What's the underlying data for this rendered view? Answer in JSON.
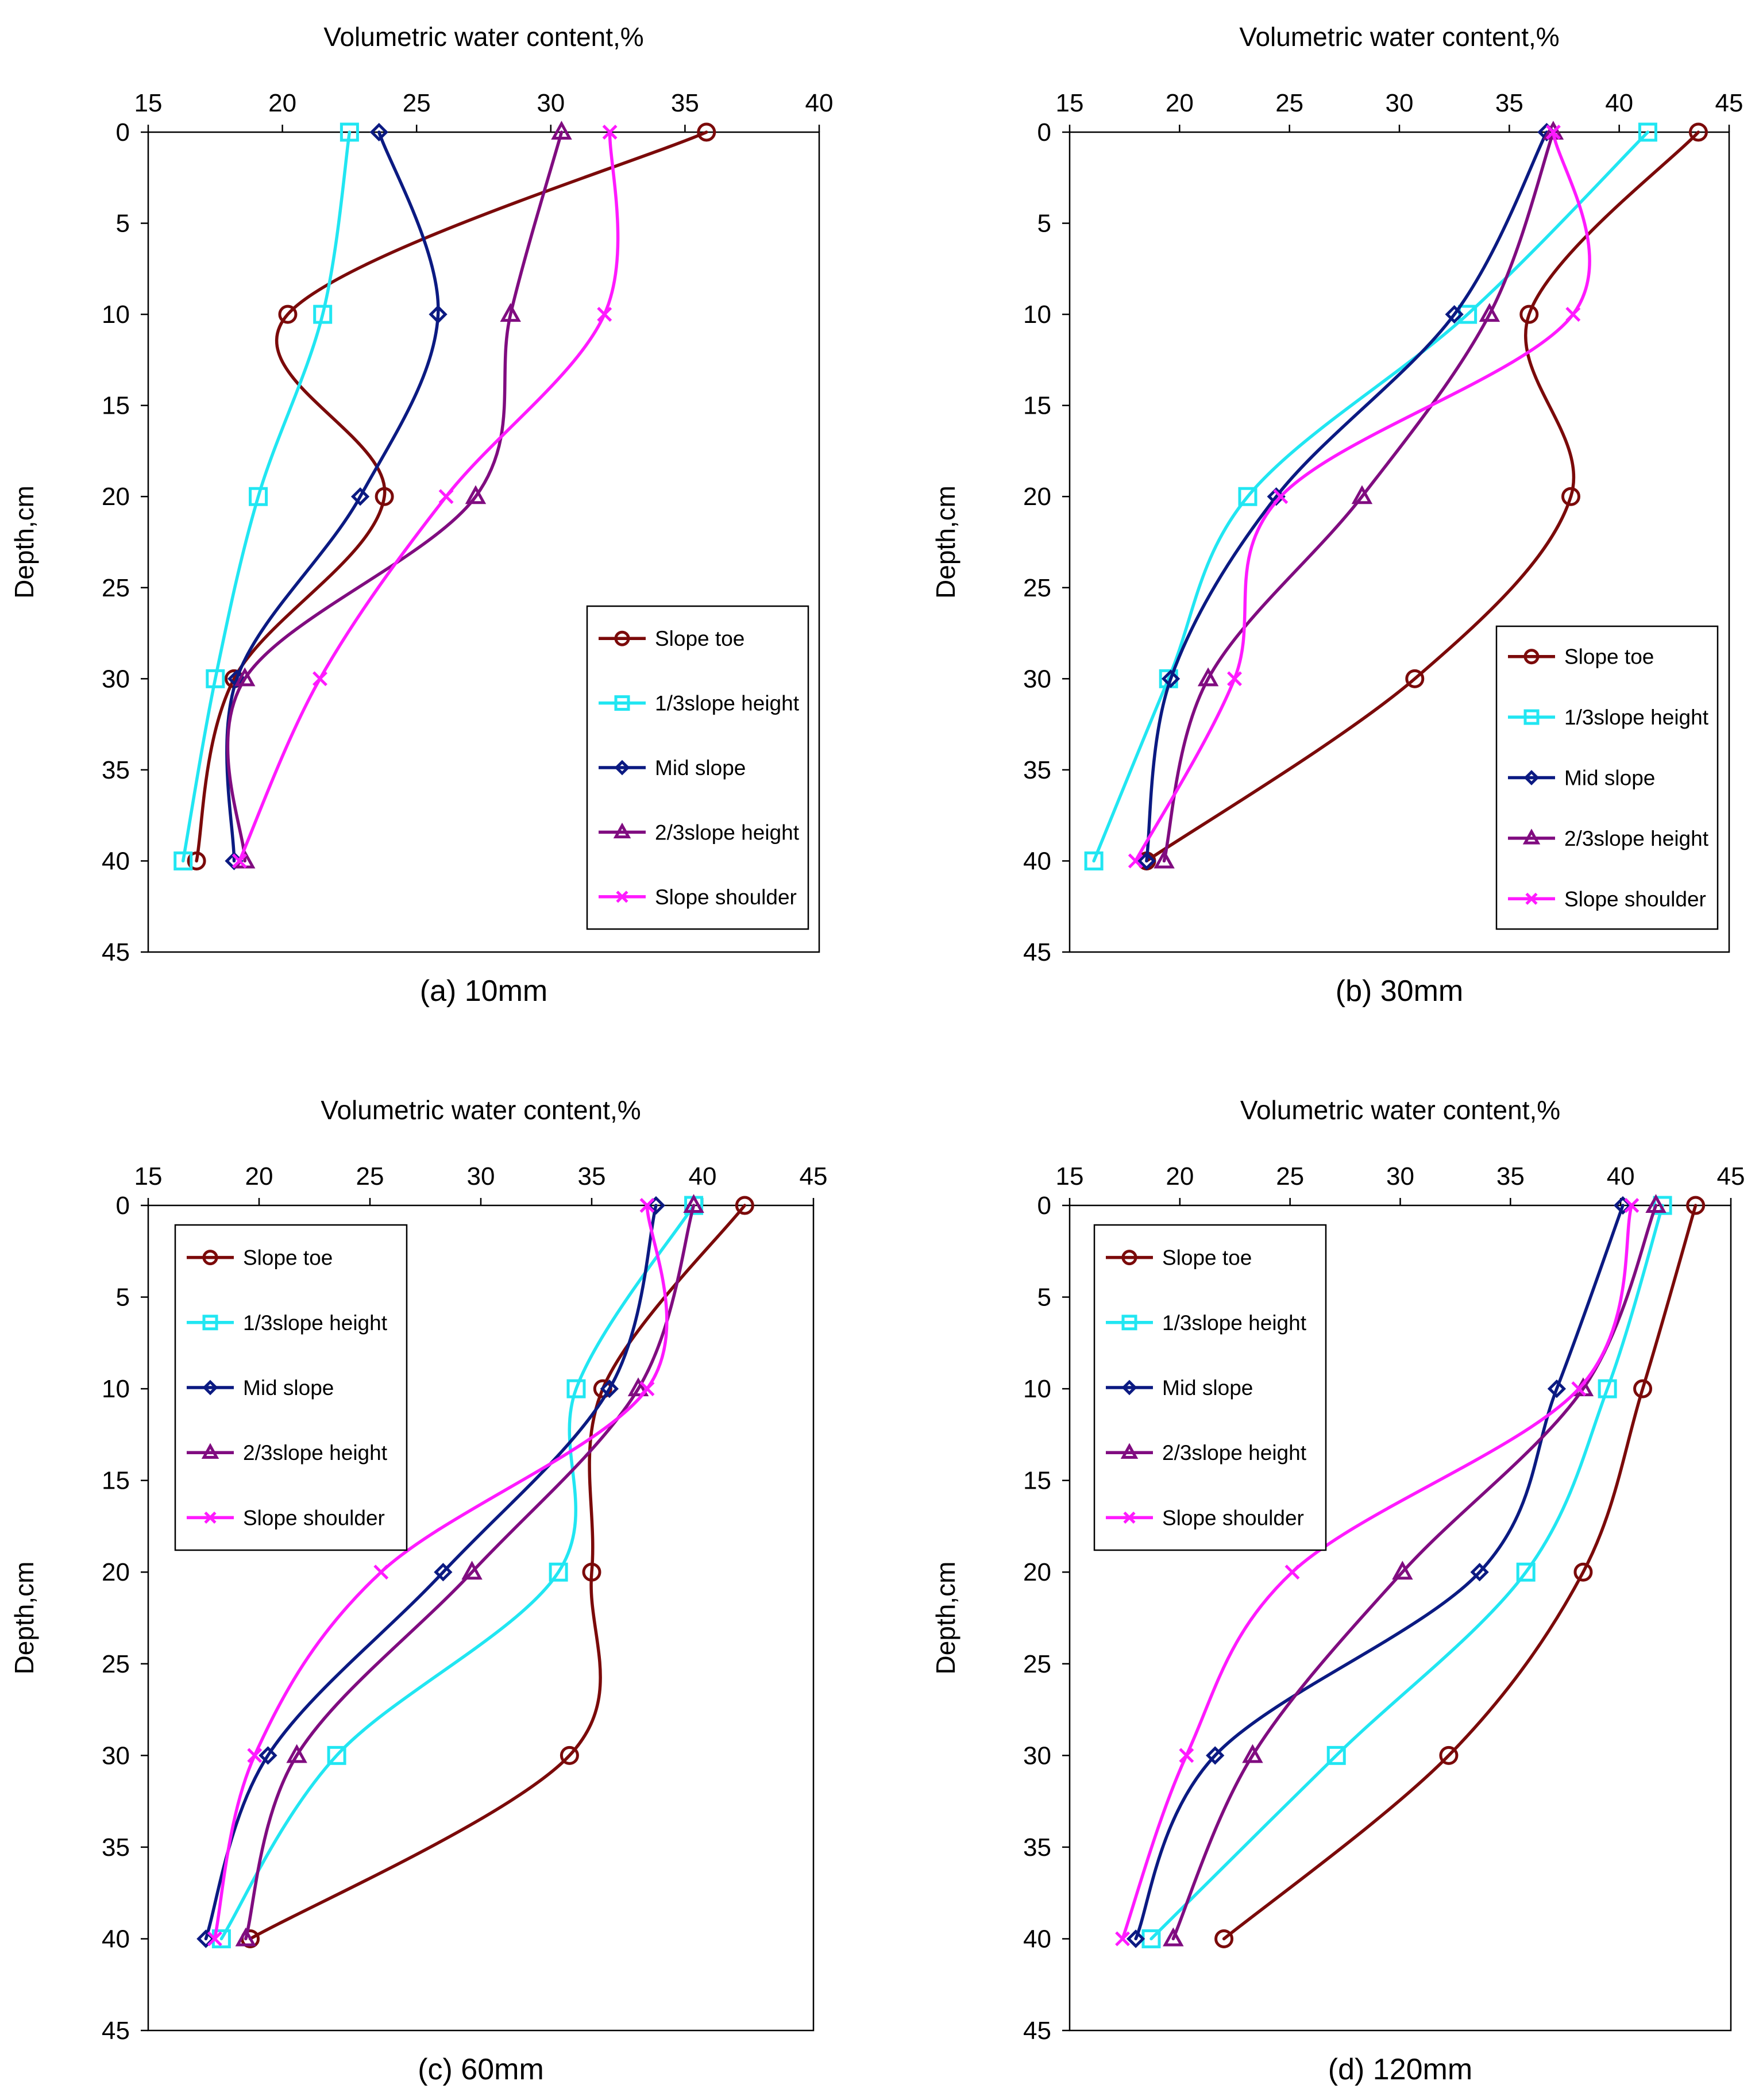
{
  "figure": {
    "colors": {
      "Slope toe": "#7b0a0a",
      "1/3slope height": "#21e6f2",
      "Mid slope": "#0b1a82",
      "2/3slope height": "#800c80",
      "Slope shoulder": "#ff1aff"
    },
    "markers": {
      "Slope toe": "circle",
      "1/3slope height": "square",
      "Mid slope": "diamond",
      "2/3slope height": "triangle",
      "Slope shoulder": "cross"
    }
  },
  "chart_data": [
    {
      "type": "line",
      "caption": "(a) 10mm",
      "xlabel": "Volumetric water content,%",
      "ylabel": "Depth,cm",
      "xlim": [
        15,
        40
      ],
      "xticks": [
        15,
        20,
        25,
        30,
        35,
        40
      ],
      "ylim": [
        0,
        45
      ],
      "yticks": [
        0,
        5,
        10,
        15,
        20,
        25,
        30,
        35,
        40,
        45
      ],
      "y_inverted": true,
      "legend_position": "bottom-right",
      "depths": [
        0,
        10,
        20,
        30,
        40
      ],
      "series": [
        {
          "name": "Slope toe",
          "values": [
            35.8,
            20.2,
            23.8,
            18.2,
            16.8
          ]
        },
        {
          "name": "1/3slope height",
          "values": [
            22.5,
            21.5,
            19.1,
            17.5,
            16.3
          ]
        },
        {
          "name": "Mid slope",
          "values": [
            23.6,
            25.8,
            22.9,
            18.3,
            18.2
          ]
        },
        {
          "name": "2/3slope height",
          "values": [
            30.4,
            28.5,
            27.2,
            18.6,
            18.6
          ]
        },
        {
          "name": "Slope shoulder",
          "values": [
            32.2,
            32.0,
            26.1,
            21.4,
            18.4
          ]
        }
      ],
      "legend": [
        "Slope toe",
        "1/3slope height",
        "Mid slope",
        "2/3slope height",
        "Slope shoulder"
      ]
    },
    {
      "type": "line",
      "caption": "(b) 30mm",
      "xlabel": "Volumetric water content,%",
      "ylabel": "Depth,cm",
      "xlim": [
        15,
        45
      ],
      "xticks": [
        15,
        20,
        25,
        30,
        35,
        40,
        45
      ],
      "ylim": [
        0,
        45
      ],
      "yticks": [
        0,
        5,
        10,
        15,
        20,
        25,
        30,
        35,
        40,
        45
      ],
      "y_inverted": true,
      "legend_position": "bottom-right",
      "depths": [
        0,
        10,
        20,
        30,
        40
      ],
      "series": [
        {
          "name": "Slope toe",
          "values": [
            43.6,
            35.9,
            37.8,
            30.7,
            18.5
          ]
        },
        {
          "name": "1/3slope height",
          "values": [
            41.3,
            33.1,
            23.1,
            19.5,
            16.1
          ]
        },
        {
          "name": "Mid slope",
          "values": [
            36.7,
            32.5,
            24.4,
            19.6,
            18.5
          ]
        },
        {
          "name": "2/3slope height",
          "values": [
            37.0,
            34.1,
            28.3,
            21.3,
            19.3
          ]
        },
        {
          "name": "Slope shoulder",
          "values": [
            37.0,
            37.9,
            24.6,
            22.5,
            18.0
          ]
        }
      ],
      "legend": [
        "Slope toe",
        "1/3slope height",
        "Mid slope",
        "2/3slope height",
        "Slope shoulder"
      ]
    },
    {
      "type": "line",
      "caption": "(c) 60mm",
      "xlabel": "Volumetric water content,%",
      "ylabel": "Depth,cm",
      "xlim": [
        15,
        45
      ],
      "xticks": [
        15,
        20,
        25,
        30,
        35,
        40,
        45
      ],
      "ylim": [
        0,
        45
      ],
      "yticks": [
        0,
        5,
        10,
        15,
        20,
        25,
        30,
        35,
        40,
        45
      ],
      "y_inverted": true,
      "legend_position": "top-left",
      "depths": [
        0,
        10,
        20,
        30,
        40
      ],
      "series": [
        {
          "name": "Slope toe",
          "values": [
            41.9,
            35.5,
            35.0,
            34.0,
            19.6
          ]
        },
        {
          "name": "1/3slope height",
          "values": [
            39.6,
            34.3,
            33.5,
            23.5,
            18.3
          ]
        },
        {
          "name": "Mid slope",
          "values": [
            37.9,
            35.8,
            28.3,
            20.4,
            17.6
          ]
        },
        {
          "name": "2/3slope height",
          "values": [
            39.6,
            37.1,
            29.6,
            21.7,
            19.4
          ]
        },
        {
          "name": "Slope shoulder",
          "values": [
            37.5,
            37.5,
            25.5,
            19.8,
            18.0
          ]
        }
      ],
      "legend": [
        "Slope toe",
        "1/3slope height",
        "Mid slope",
        "2/3slope height",
        "Slope shoulder"
      ]
    },
    {
      "type": "line",
      "caption": "(d) 120mm",
      "xlabel": "Volumetric water content,%",
      "ylabel": "Depth,cm",
      "xlim": [
        15,
        45
      ],
      "xticks": [
        15,
        20,
        25,
        30,
        35,
        40,
        45
      ],
      "ylim": [
        0,
        45
      ],
      "yticks": [
        0,
        5,
        10,
        15,
        20,
        25,
        30,
        35,
        40,
        45
      ],
      "y_inverted": true,
      "legend_position": "top-left",
      "depths": [
        0,
        10,
        20,
        30,
        40
      ],
      "series": [
        {
          "name": "Slope toe",
          "values": [
            43.4,
            41.0,
            38.3,
            32.2,
            22.0
          ]
        },
        {
          "name": "1/3slope height",
          "values": [
            41.9,
            39.4,
            35.7,
            27.1,
            18.7
          ]
        },
        {
          "name": "Mid slope",
          "values": [
            40.1,
            37.1,
            33.6,
            21.6,
            18.0
          ]
        },
        {
          "name": "2/3slope height",
          "values": [
            41.6,
            38.3,
            30.1,
            23.3,
            19.7
          ]
        },
        {
          "name": "Slope shoulder",
          "values": [
            40.5,
            38.1,
            25.1,
            20.3,
            17.4
          ]
        }
      ],
      "legend": [
        "Slope toe",
        "1/3slope height",
        "Mid slope",
        "2/3slope height",
        "Slope shoulder"
      ]
    }
  ]
}
